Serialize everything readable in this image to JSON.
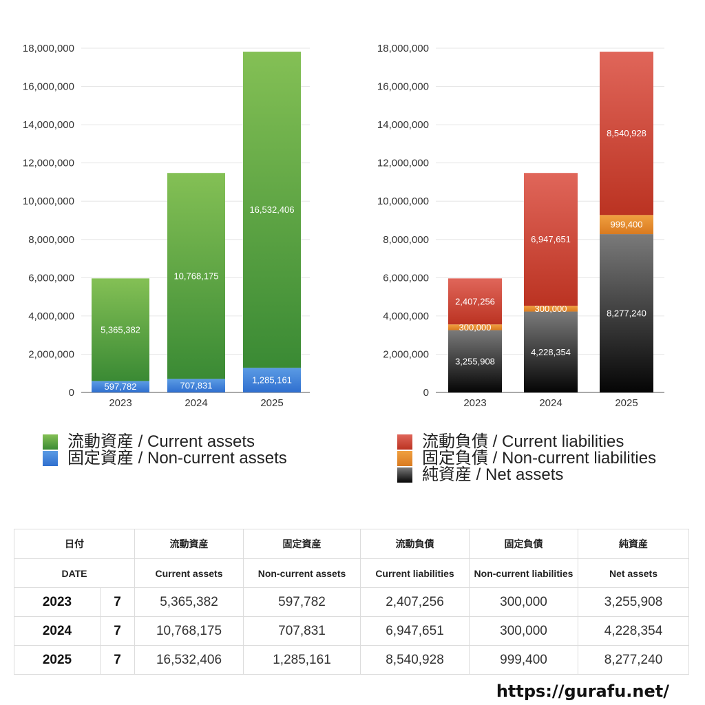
{
  "chart_data": [
    {
      "type": "bar",
      "stacked": true,
      "categories": [
        "2023",
        "2024",
        "2025"
      ],
      "ylim": [
        0,
        18000000
      ],
      "yticks": [
        "0",
        "2,000,000",
        "4,000,000",
        "6,000,000",
        "8,000,000",
        "10,000,000",
        "12,000,000",
        "14,000,000",
        "16,000,000",
        "18,000,000"
      ],
      "grid": true,
      "series": [
        {
          "name": "固定資産 / Non-current assets",
          "color_top": "#5b9be4",
          "color_bottom": "#2f6fcf",
          "values": [
            597782,
            707831,
            1285161
          ],
          "labels": [
            "597,782",
            "707,831",
            "1,285,161"
          ]
        },
        {
          "name": "流動資産 / Current assets",
          "color_top": "#84c055",
          "color_bottom": "#3a8a34",
          "values": [
            5365382,
            10768175,
            16532406
          ],
          "labels": [
            "5,365,382",
            "10,768,175",
            "16,532,406"
          ]
        }
      ]
    },
    {
      "type": "bar",
      "stacked": true,
      "categories": [
        "2023",
        "2024",
        "2025"
      ],
      "ylim": [
        0,
        18000000
      ],
      "yticks": [
        "0",
        "2,000,000",
        "4,000,000",
        "6,000,000",
        "8,000,000",
        "10,000,000",
        "12,000,000",
        "14,000,000",
        "16,000,000",
        "18,000,000"
      ],
      "grid": true,
      "series": [
        {
          "name": "純資産 / Net assets",
          "color_top": "#7a7a7a",
          "color_bottom": "#050505",
          "values": [
            3255908,
            4228354,
            8277240
          ],
          "labels": [
            "3,255,908",
            "4,228,354",
            "8,277,240"
          ]
        },
        {
          "name": "固定負債 / Non-current liabilities",
          "color_top": "#f0a040",
          "color_bottom": "#d97a20",
          "values": [
            300000,
            300000,
            999400
          ],
          "labels": [
            "300,000",
            "300,000",
            "999,400"
          ]
        },
        {
          "name": "流動負債 / Current liabilities",
          "color_top": "#e0665a",
          "color_bottom": "#bb3322",
          "values": [
            2407256,
            6947651,
            8540928
          ],
          "labels": [
            "2,407,256",
            "6,947,651",
            "8,540,928"
          ]
        }
      ]
    }
  ],
  "legend_left": [
    "流動資産 / Current assets",
    "固定資産 / Non-current assets"
  ],
  "legend_right": [
    "流動負債 / Current liabilities",
    "固定負債 / Non-current liabilities",
    "純資産 / Net assets"
  ],
  "table": {
    "headers_jp": [
      "日付",
      "流動資産",
      "固定資産",
      "流動負債",
      "固定負債",
      "純資産"
    ],
    "headers_en": [
      "DATE",
      "Current assets",
      "Non-current assets",
      "Current liabilities",
      "Non-current liabilities",
      "Net assets"
    ],
    "rows": [
      {
        "year": "2023",
        "month": "7",
        "cells": [
          "5,365,382",
          "597,782",
          "2,407,256",
          "300,000",
          "3,255,908"
        ]
      },
      {
        "year": "2024",
        "month": "7",
        "cells": [
          "10,768,175",
          "707,831",
          "6,947,651",
          "300,000",
          "4,228,354"
        ]
      },
      {
        "year": "2025",
        "month": "7",
        "cells": [
          "16,532,406",
          "1,285,161",
          "8,540,928",
          "999,400",
          "8,277,240"
        ]
      }
    ]
  },
  "source": "https://gurafu.net/",
  "colors": {
    "green": "#6aaa48",
    "blue": "#4a86d8",
    "red": "#cc4433",
    "orange": "#e8902e",
    "black": "#222222"
  }
}
